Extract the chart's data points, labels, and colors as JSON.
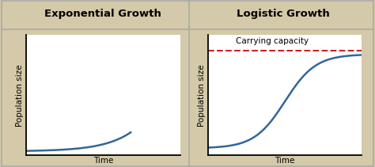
{
  "title_left": "Exponential Growth",
  "title_right": "Logistic Growth",
  "ylabel": "Population size",
  "xlabel": "Time",
  "carrying_capacity_label": "Carrying capacity",
  "header_bg": "#d4c9a8",
  "plot_bg": "#ffffff",
  "outer_bg": "#d4c9a8",
  "curve_color": "#336699",
  "curve_linewidth": 1.8,
  "dashed_color": "#cc2222",
  "dashed_linewidth": 1.5,
  "title_fontsize": 9.5,
  "label_fontsize": 7.5,
  "cc_fontsize": 7.5,
  "border_color": "#aaaaaa"
}
